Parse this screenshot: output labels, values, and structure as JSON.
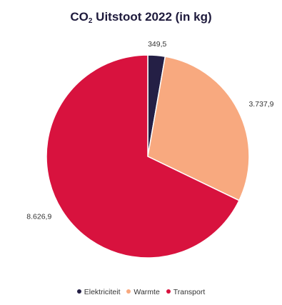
{
  "chart_data": {
    "type": "pie",
    "title_main": "CO",
    "title_sub": "2",
    "title_rest": " Uitstoot 2022 (in kg)",
    "series": [
      {
        "name": "Elektriciteit",
        "value": 349.5,
        "label": "349,5",
        "color": "#241f45"
      },
      {
        "name": "Warmte",
        "value": 3737.9,
        "label": "3.737,9",
        "color": "#f8a97f"
      },
      {
        "name": "Transport",
        "value": 8626.9,
        "label": "8.626,9",
        "color": "#d8123e"
      }
    ],
    "legend_position": "bottom",
    "start_angle": "12 o'clock",
    "direction": "clockwise"
  }
}
